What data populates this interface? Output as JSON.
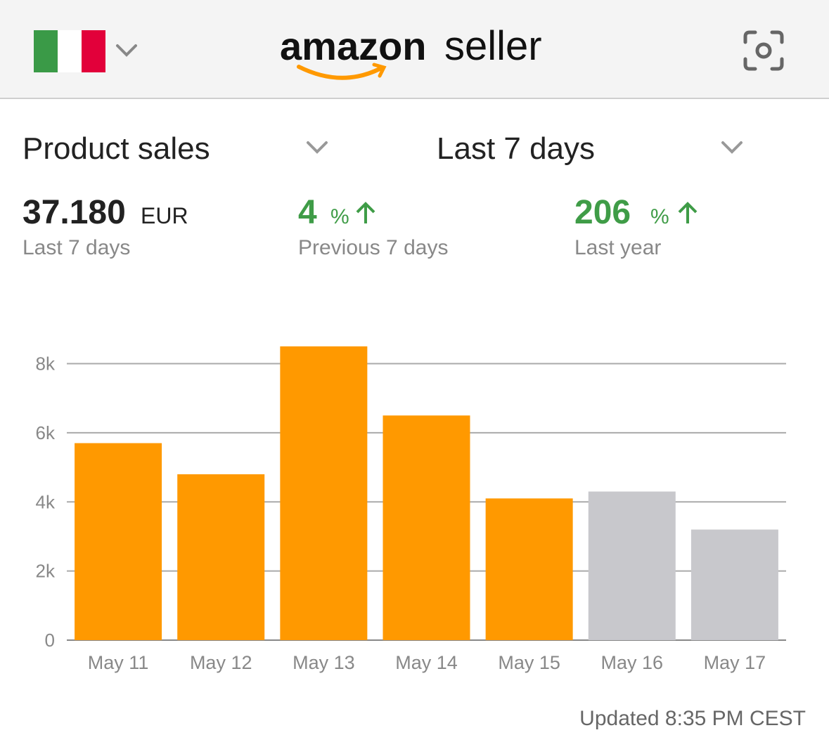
{
  "header": {
    "logo_brand": "amazon",
    "logo_product": "seller"
  },
  "selectors": {
    "metric": "Product sales",
    "period": "Last 7 days"
  },
  "summary": [
    {
      "value": "37.180",
      "unit": "EUR",
      "label": "Last 7 days"
    },
    {
      "value": "4",
      "unit": "%",
      "label": "Previous 7 days"
    },
    {
      "value": "206",
      "unit": "%",
      "label": "Last year"
    }
  ],
  "chart_data": {
    "type": "bar",
    "categories": [
      "May 11",
      "May 12",
      "May 13",
      "May 14",
      "May 15",
      "May 16",
      "May 17"
    ],
    "values": [
      5700,
      4800,
      8500,
      6500,
      4100,
      4300,
      3200
    ],
    "colors": [
      "#ff9900",
      "#ff9900",
      "#ff9900",
      "#ff9900",
      "#ff9900",
      "#c8c8cc",
      "#c8c8cc"
    ],
    "ylim": [
      0,
      8600
    ],
    "yticks": [
      0,
      {
        "value": 2000,
        "label": "2k"
      },
      {
        "value": 4000,
        "label": "4k"
      },
      {
        "value": 6000,
        "label": "6k"
      },
      {
        "value": 8000,
        "label": "8k"
      }
    ],
    "grid": true
  },
  "footer": "Updated 8:35 PM CEST"
}
